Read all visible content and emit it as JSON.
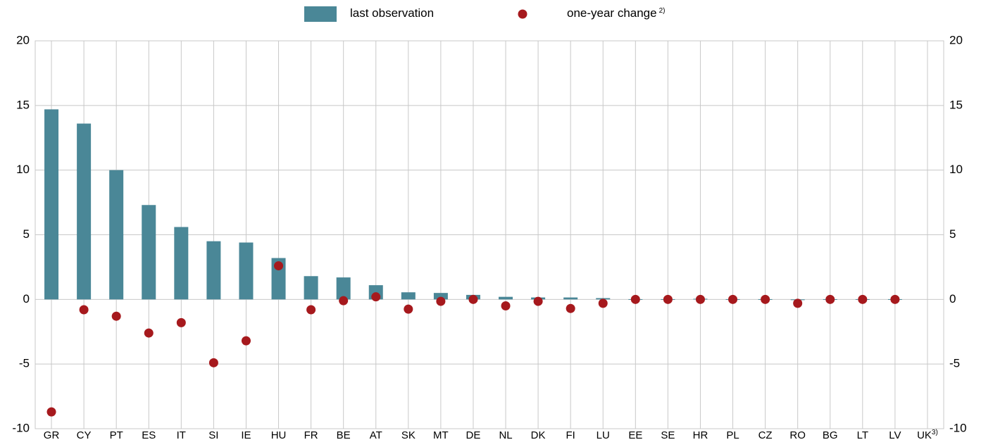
{
  "chart_data": {
    "type": "bar_dot",
    "categories": [
      "GR",
      "CY",
      "PT",
      "ES",
      "IT",
      "SI",
      "IE",
      "HU",
      "FR",
      "BE",
      "AT",
      "SK",
      "MT",
      "DE",
      "NL",
      "DK",
      "FI",
      "LU",
      "EE",
      "SE",
      "HR",
      "PL",
      "CZ",
      "RO",
      "BG",
      "LT",
      "LV",
      "UK"
    ],
    "category_notes": [
      null,
      null,
      null,
      null,
      null,
      null,
      null,
      null,
      null,
      null,
      null,
      null,
      null,
      null,
      null,
      null,
      null,
      null,
      null,
      null,
      null,
      null,
      null,
      null,
      null,
      null,
      null,
      "3)"
    ],
    "series": [
      {
        "name": "last observation",
        "color": "#4a8797",
        "mark": "bar",
        "values": [
          14.7,
          13.6,
          10.0,
          7.3,
          5.6,
          4.5,
          4.4,
          3.2,
          1.8,
          1.7,
          1.1,
          0.55,
          0.5,
          0.35,
          0.2,
          0.15,
          0.15,
          0.1,
          0.02,
          0.02,
          0.05,
          0.02,
          0.02,
          -0.05,
          0.02,
          0.02,
          0.02,
          null
        ]
      },
      {
        "name": "one-year change",
        "note": "2)",
        "color": "#a6191d",
        "mark": "dot",
        "values": [
          -8.7,
          -0.8,
          -1.3,
          -2.6,
          -1.8,
          -4.9,
          -3.2,
          2.6,
          -0.8,
          -0.1,
          0.2,
          -0.75,
          -0.15,
          0,
          -0.5,
          -0.15,
          -0.7,
          -0.3,
          0,
          0,
          0,
          0,
          0,
          -0.3,
          0,
          0,
          0,
          null
        ]
      }
    ],
    "ylim": [
      -10,
      20
    ],
    "yticks": [
      -10,
      -5,
      0,
      5,
      10,
      15,
      20
    ],
    "y2lim": [
      -10,
      20
    ],
    "y2ticks": [
      -10,
      -5,
      0,
      5,
      10,
      15,
      20
    ],
    "grid": true
  }
}
